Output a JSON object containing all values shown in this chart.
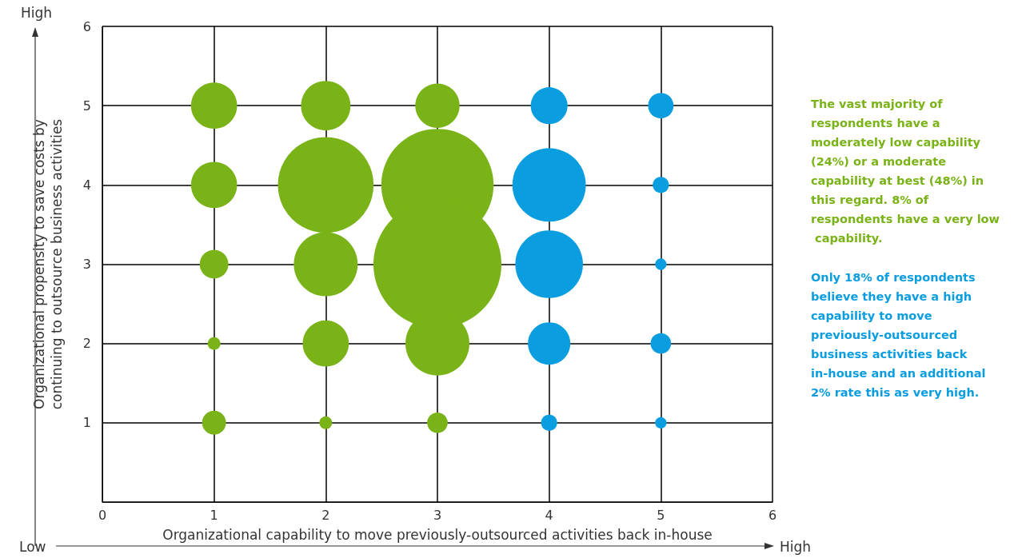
{
  "chart_data": {
    "type": "bubble",
    "xlabel": "Organizational capability to move previously-outsourced activities back in-house",
    "ylabel": "Organizational propensity to save costs by\ncontinuing to outsource business activities",
    "xlim": [
      0,
      6
    ],
    "ylim": [
      0,
      6
    ],
    "xticks": [
      0,
      1,
      2,
      3,
      4,
      5,
      6
    ],
    "yticks": [
      {
        "value": 0,
        "label": null
      },
      1,
      2,
      3,
      4,
      5,
      6
    ],
    "grid": true,
    "series": [
      {
        "color": "#7ab317",
        "x": [
          1,
          1,
          1,
          1,
          1,
          2,
          2,
          2,
          2,
          2,
          3,
          3,
          3,
          3,
          3
        ],
        "values": [
          5,
          4,
          3,
          2,
          1,
          5,
          4,
          3,
          2,
          1,
          5,
          4,
          3,
          2,
          1
        ],
        "sizes": [
          0.13,
          0.13,
          0.05,
          0.01,
          0.035,
          0.15,
          0.56,
          0.25,
          0.13,
          0.01,
          0.12,
          0.77,
          1,
          0.25,
          0.026
        ]
      },
      {
        "color": "#0a9ee0",
        "x": [
          4,
          4,
          4,
          4,
          4,
          5,
          5,
          5,
          5,
          5
        ],
        "values": [
          5,
          4,
          3,
          2,
          1,
          5,
          4,
          3,
          2,
          1
        ],
        "sizes": [
          0.083,
          0.33,
          0.28,
          0.11,
          0.016,
          0.04,
          0.016,
          0.008,
          0.026,
          0.008
        ]
      }
    ],
    "annotations": [
      "High",
      "Low",
      "High",
      "The vast majority of respondents have a moderately low capability (24%) or a moderate capability at best (48%) in this regard. 8% of respondents have a very low capability.",
      "Only 18% of respondents believe they have a high capability to move previously-outsourced business activities back in-house and an additional 2% rate this as very high."
    ]
  }
}
